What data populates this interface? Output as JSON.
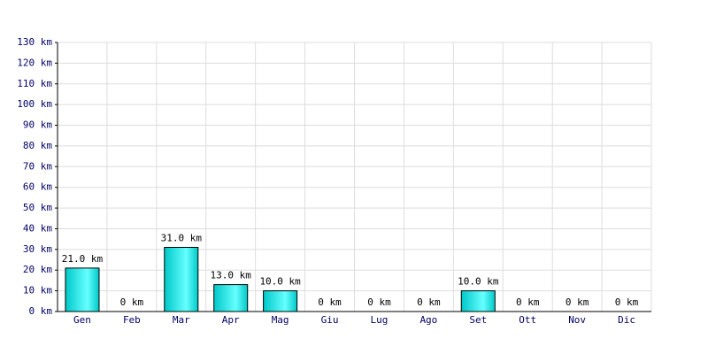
{
  "chart_data": {
    "type": "bar",
    "categories": [
      "Gen",
      "Feb",
      "Mar",
      "Apr",
      "Mag",
      "Giu",
      "Lug",
      "Ago",
      "Set",
      "Ott",
      "Nov",
      "Dic"
    ],
    "values": [
      21,
      0,
      31,
      13,
      10,
      0,
      0,
      0,
      10,
      0,
      0,
      0
    ],
    "value_labels": [
      "21.0 km",
      "0 km",
      "31.0 km",
      "13.0 km",
      "10.0 km",
      "0 km",
      "0 km",
      "0 km",
      "10.0 km",
      "0 km",
      "0 km",
      "0 km"
    ],
    "color": "#00c8c8",
    "ylim": [
      0,
      130
    ],
    "yticks": [
      {
        "value": 0,
        "label": "0 km"
      },
      {
        "value": 10,
        "label": "10 km"
      },
      {
        "value": 20,
        "label": "20 km"
      },
      {
        "value": 30,
        "label": "30 km"
      },
      {
        "value": 40,
        "label": "40 km"
      },
      {
        "value": 50,
        "label": "50 km"
      },
      {
        "value": 60,
        "label": "60 km"
      },
      {
        "value": 70,
        "label": "70 km"
      },
      {
        "value": 80,
        "label": "80 km"
      },
      {
        "value": 90,
        "label": "90 km"
      },
      {
        "value": 100,
        "label": "100 km"
      },
      {
        "value": 110,
        "label": "110 km"
      },
      {
        "value": 120,
        "label": "120 km"
      },
      {
        "value": 130,
        "label": "130 km"
      }
    ],
    "grid": true
  }
}
